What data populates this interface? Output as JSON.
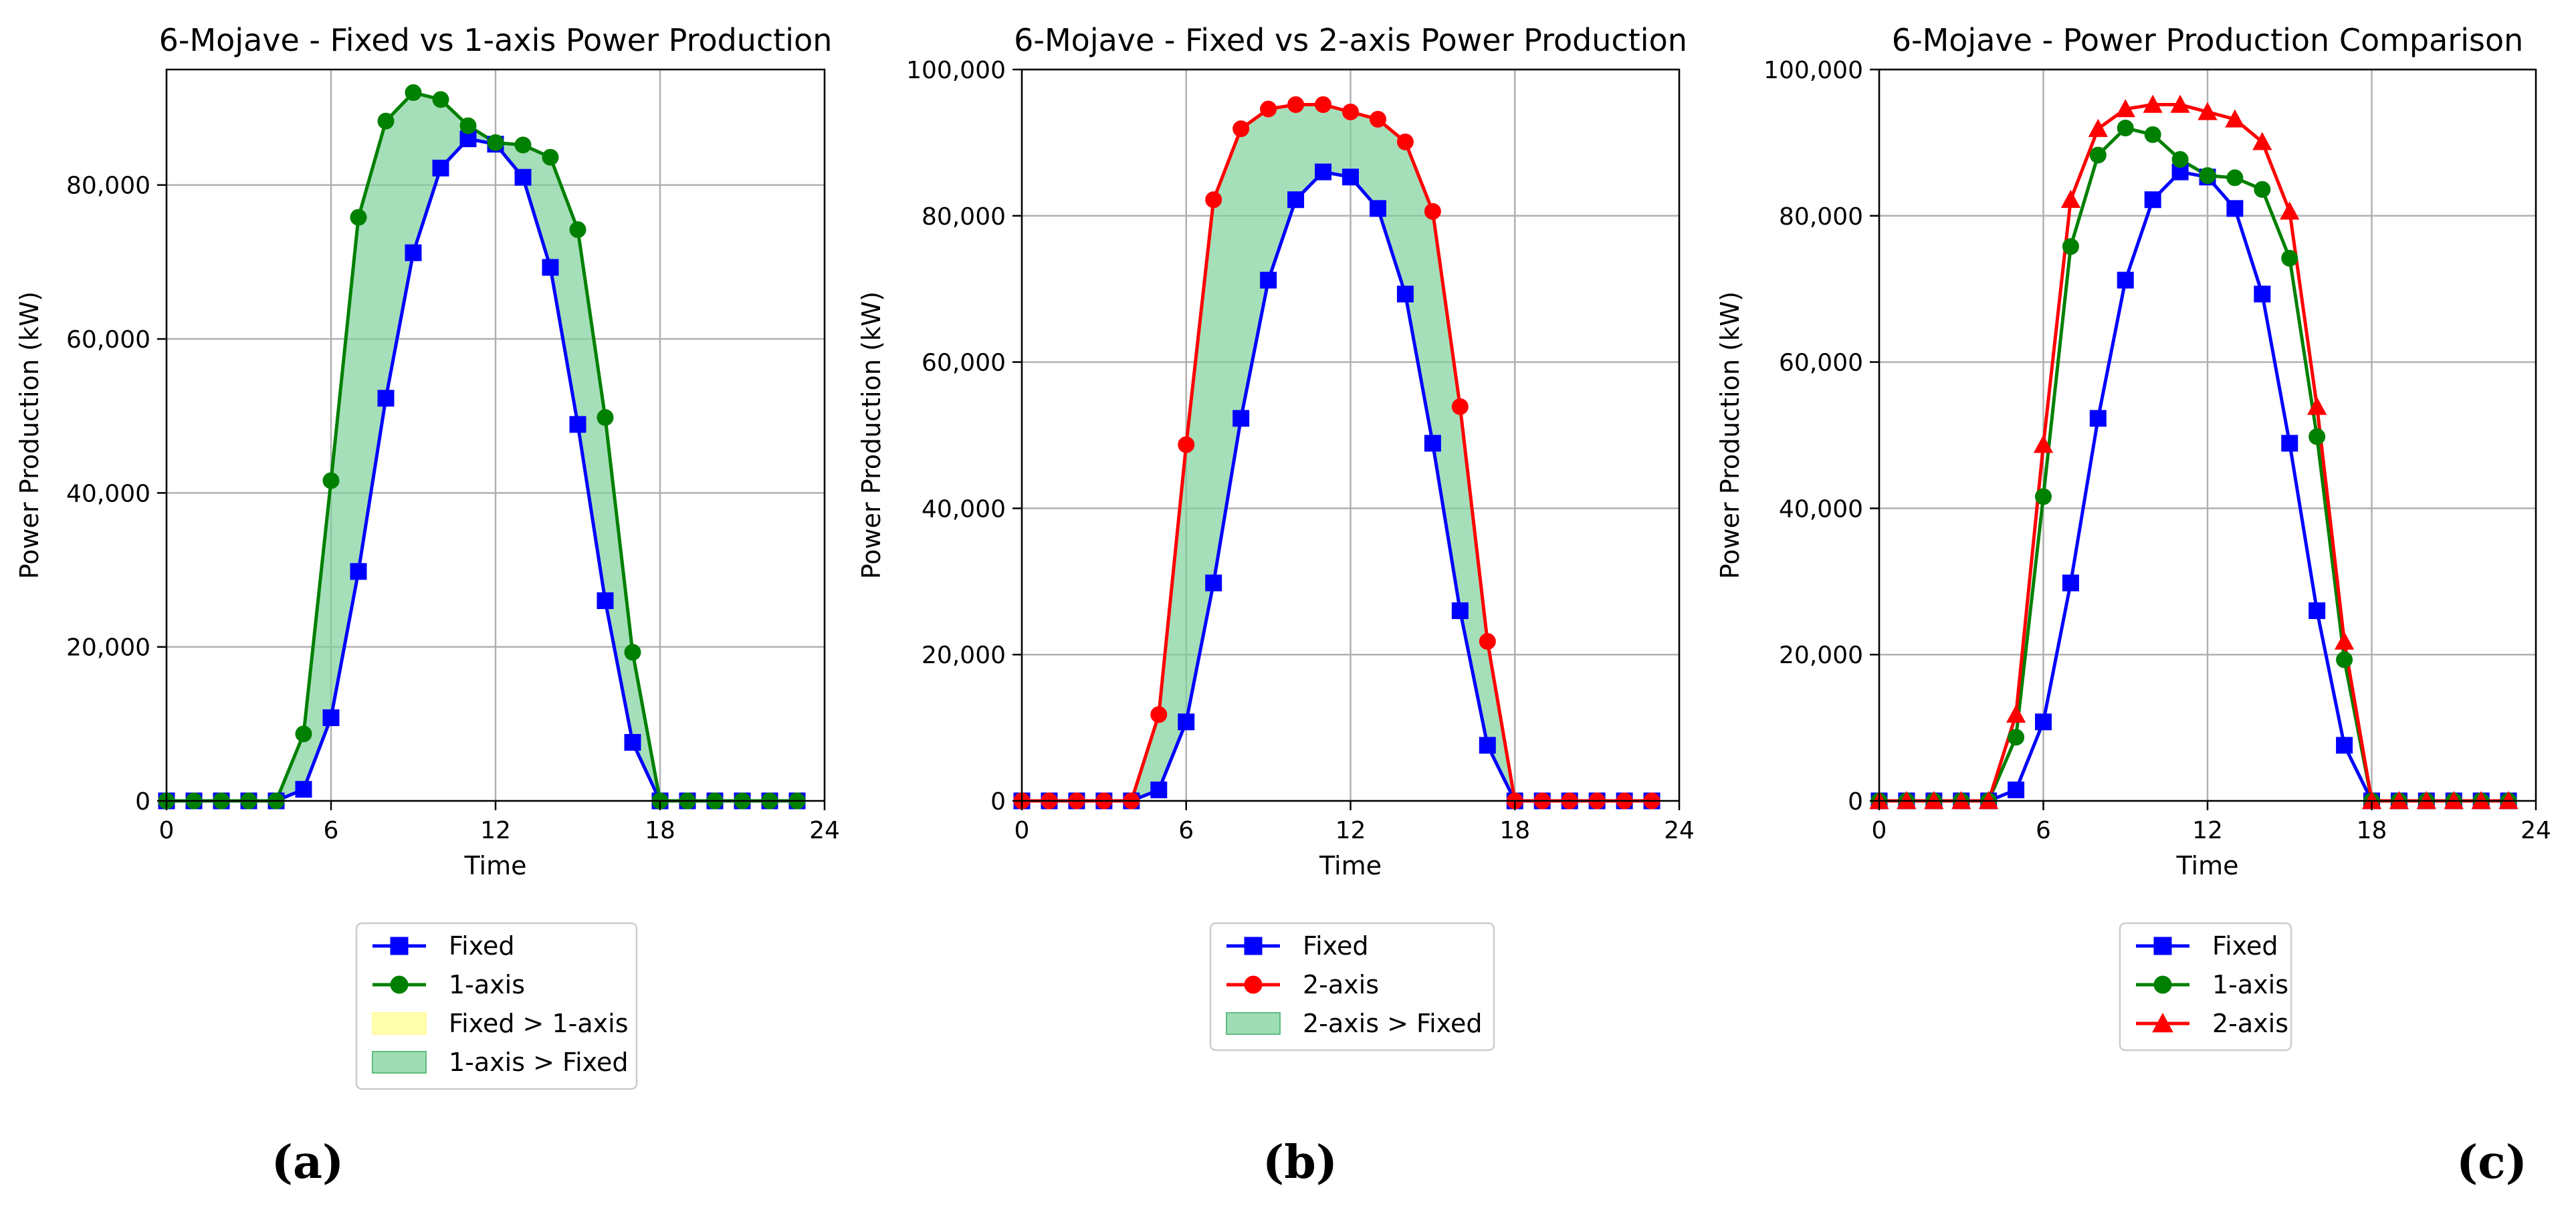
{
  "figure": {
    "panels": [
      {
        "title": "6-Mojave - Fixed vs 1-axis Power Production",
        "letter": "(a)"
      },
      {
        "title": "6-Mojave - Fixed vs 2-axis Power Production",
        "letter": "(b)"
      },
      {
        "title": "6-Mojave - Power Production Comparison",
        "letter": "(c)"
      }
    ]
  },
  "chart_data": [
    {
      "type": "line",
      "title": "6-Mojave - Fixed vs 1-axis Power Production",
      "xlabel": "Time",
      "ylabel": "Power Production (kW)",
      "xlim": [
        0,
        24
      ],
      "ylim": [
        0,
        95000
      ],
      "xticks": [
        0,
        6,
        12,
        18,
        24
      ],
      "yticks": [
        0,
        20000,
        40000,
        60000,
        80000
      ],
      "ytick_labels": [
        "0",
        "20,000",
        "40,000",
        "60,000",
        "80,000"
      ],
      "grid": true,
      "legend_position": "below",
      "x": [
        0,
        1,
        2,
        3,
        4,
        5,
        6,
        7,
        8,
        9,
        10,
        11,
        12,
        13,
        14,
        15,
        16,
        17,
        18,
        19,
        20,
        21,
        22,
        23
      ],
      "series": [
        {
          "name": "Fixed",
          "color": "#0000ff",
          "marker": "square",
          "values": [
            0,
            0,
            0,
            0,
            0,
            1500,
            10800,
            29800,
            52300,
            71200,
            82200,
            86000,
            85300,
            81000,
            69300,
            48900,
            26000,
            7600,
            0,
            0,
            0,
            0,
            0,
            0
          ]
        },
        {
          "name": "1-axis",
          "color": "#008000",
          "marker": "circle",
          "values": [
            0,
            0,
            0,
            0,
            0,
            8700,
            41600,
            75800,
            88300,
            92000,
            91100,
            87700,
            85500,
            85200,
            83600,
            74200,
            49800,
            19300,
            0,
            0,
            0,
            0,
            0,
            0
          ]
        }
      ],
      "fills": [
        {
          "name": "Fixed > 1-axis",
          "color": "#ffff99"
        },
        {
          "name": "1-axis > Fixed",
          "color": "#7fd19b"
        }
      ]
    },
    {
      "type": "line",
      "title": "6-Mojave - Fixed vs 2-axis Power Production",
      "xlabel": "Time",
      "ylabel": "Power Production (kW)",
      "xlim": [
        0,
        24
      ],
      "ylim": [
        0,
        100000
      ],
      "xticks": [
        0,
        6,
        12,
        18,
        24
      ],
      "yticks": [
        0,
        20000,
        40000,
        60000,
        80000,
        100000
      ],
      "ytick_labels": [
        "0",
        "20,000",
        "40,000",
        "60,000",
        "80,000",
        "100,000"
      ],
      "grid": true,
      "legend_position": "below",
      "x": [
        0,
        1,
        2,
        3,
        4,
        5,
        6,
        7,
        8,
        9,
        10,
        11,
        12,
        13,
        14,
        15,
        16,
        17,
        18,
        19,
        20,
        21,
        22,
        23
      ],
      "series": [
        {
          "name": "Fixed",
          "color": "#0000ff",
          "marker": "square",
          "values": [
            0,
            0,
            0,
            0,
            0,
            1500,
            10800,
            29800,
            52300,
            71200,
            82200,
            86000,
            85300,
            81000,
            69300,
            48900,
            26000,
            7600,
            0,
            0,
            0,
            0,
            0,
            0
          ]
        },
        {
          "name": "2-axis",
          "color": "#ff0000",
          "marker": "circle",
          "values": [
            0,
            0,
            0,
            0,
            0,
            11800,
            48700,
            82200,
            91900,
            94600,
            95200,
            95200,
            94200,
            93200,
            90100,
            80600,
            53900,
            21800,
            0,
            0,
            0,
            0,
            0,
            0
          ]
        }
      ],
      "fills": [
        {
          "name": "2-axis > Fixed",
          "color": "#7fd19b"
        }
      ]
    },
    {
      "type": "line",
      "title": "6-Mojave - Power Production Comparison",
      "xlabel": "Time",
      "ylabel": "Power Production (kW)",
      "xlim": [
        0,
        24
      ],
      "ylim": [
        0,
        100000
      ],
      "xticks": [
        0,
        6,
        12,
        18,
        24
      ],
      "yticks": [
        0,
        20000,
        40000,
        60000,
        80000,
        100000
      ],
      "ytick_labels": [
        "0",
        "20,000",
        "40,000",
        "60,000",
        "80,000",
        "100,000"
      ],
      "grid": true,
      "legend_position": "below",
      "x": [
        0,
        1,
        2,
        3,
        4,
        5,
        6,
        7,
        8,
        9,
        10,
        11,
        12,
        13,
        14,
        15,
        16,
        17,
        18,
        19,
        20,
        21,
        22,
        23
      ],
      "series": [
        {
          "name": "Fixed",
          "color": "#0000ff",
          "marker": "square",
          "values": [
            0,
            0,
            0,
            0,
            0,
            1500,
            10800,
            29800,
            52300,
            71200,
            82200,
            86000,
            85300,
            81000,
            69300,
            48900,
            26000,
            7600,
            0,
            0,
            0,
            0,
            0,
            0
          ]
        },
        {
          "name": "1-axis",
          "color": "#008000",
          "marker": "circle",
          "values": [
            0,
            0,
            0,
            0,
            0,
            8700,
            41600,
            75800,
            88300,
            92000,
            91100,
            87700,
            85500,
            85200,
            83600,
            74200,
            49800,
            19300,
            0,
            0,
            0,
            0,
            0,
            0
          ]
        },
        {
          "name": "2-axis",
          "color": "#ff0000",
          "marker": "triangle",
          "values": [
            0,
            0,
            0,
            0,
            0,
            11800,
            48700,
            82200,
            91900,
            94600,
            95200,
            95200,
            94200,
            93200,
            90100,
            80600,
            53900,
            21800,
            0,
            0,
            0,
            0,
            0,
            0
          ]
        }
      ],
      "fills": []
    }
  ]
}
